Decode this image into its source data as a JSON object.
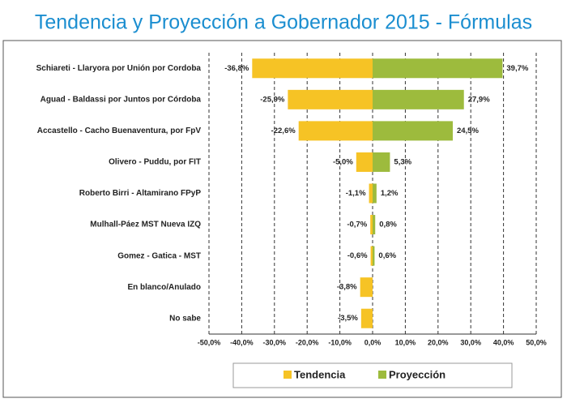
{
  "chart_data": {
    "type": "diverging-bar",
    "title": "Tendencia y Proyección a Gobernador 2015 - Fórmulas",
    "categories": [
      "Schiareti - Llaryora por Unión por Cordoba",
      "Aguad - Baldassi por Juntos por Córdoba",
      "Accastello - Cacho Buenaventura, por FpV",
      "Olivero - Puddu, por FIT",
      "Roberto Birri - Altamirano FPyP",
      "Mulhall-Páez MST Nueva IZQ",
      "Gomez - Gatica - MST",
      "En blanco/Anulado",
      "No sabe"
    ],
    "series": [
      {
        "name": "Tendencia",
        "color": "#f6c325",
        "values": [
          -36.8,
          -25.9,
          -22.6,
          -5.0,
          -1.1,
          -0.7,
          -0.6,
          -3.8,
          -3.5
        ],
        "value_labels": [
          "-36,8%",
          "-25,9%",
          "-22,6%",
          "-5,0%",
          "-1,1%",
          "-0,7%",
          "-0,6%",
          "-3,8%",
          "-3,5%"
        ]
      },
      {
        "name": "Proyección",
        "color": "#9dbb3d",
        "values": [
          39.7,
          27.9,
          24.5,
          5.3,
          1.2,
          0.8,
          0.6,
          null,
          null
        ],
        "value_labels": [
          "39,7%",
          "27,9%",
          "24,5%",
          "5,3%",
          "1,2%",
          "0,8%",
          "0,6%",
          null,
          null
        ]
      }
    ],
    "xlim": [
      -50,
      50
    ],
    "xticks": [
      {
        "value": -50,
        "label": "-50,0%"
      },
      {
        "value": -40,
        "label": "-40,0%"
      },
      {
        "value": -30,
        "label": "-30,0%"
      },
      {
        "value": -20,
        "label": "-20,0%"
      },
      {
        "value": -10,
        "label": "-10,0%"
      },
      {
        "value": 0,
        "label": "0,0%"
      },
      {
        "value": 10,
        "label": "10,0%"
      },
      {
        "value": 20,
        "label": "20,0%"
      },
      {
        "value": 30,
        "label": "30,0%"
      },
      {
        "value": 40,
        "label": "40,0%"
      },
      {
        "value": 50,
        "label": "50,0%"
      }
    ],
    "grid": true,
    "legend": "bottom"
  }
}
